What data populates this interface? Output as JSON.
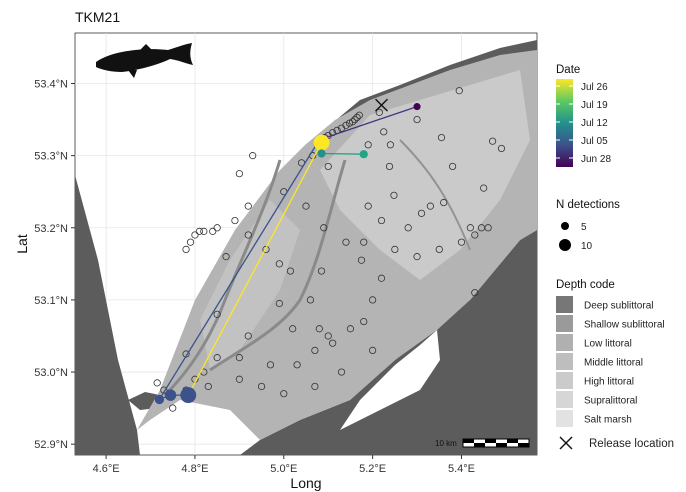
{
  "chart_data": {
    "type": "scatter",
    "title": "TKM21",
    "xlabel": "Long",
    "ylabel": "Lat",
    "xlim": [
      4.53,
      5.57
    ],
    "ylim": [
      52.885,
      53.47
    ],
    "x_ticks": [
      {
        "value": 4.6,
        "label": "4.6°E"
      },
      {
        "value": 4.8,
        "label": "4.8°E"
      },
      {
        "value": 5.0,
        "label": "5.0°E"
      },
      {
        "value": 5.2,
        "label": "5.2°E"
      },
      {
        "value": 5.4,
        "label": "5.4°E"
      }
    ],
    "y_ticks": [
      {
        "value": 52.9,
        "label": "52.9°N"
      },
      {
        "value": 53.0,
        "label": "53.0°N"
      },
      {
        "value": 53.1,
        "label": "53.1°N"
      },
      {
        "value": 53.2,
        "label": "53.2°N"
      },
      {
        "value": 53.3,
        "label": "53.3°N"
      },
      {
        "value": 53.4,
        "label": "53.4°N"
      }
    ],
    "grid": true,
    "legend_position": "right",
    "date_legend": {
      "title": "Date",
      "labels": [
        "Jul 26",
        "Jul 19",
        "Jul 12",
        "Jul 05",
        "Jun 28"
      ],
      "colors": [
        "#fde725",
        "#5ec962",
        "#21918c",
        "#3b528b",
        "#440154"
      ]
    },
    "size_legend": {
      "title": "N detections",
      "entries": [
        {
          "label": "5",
          "value": 5
        },
        {
          "label": "10",
          "value": 10
        }
      ]
    },
    "depth_legend": {
      "title": "Depth code",
      "items": [
        {
          "label": "Deep sublittoral",
          "color": "#777777"
        },
        {
          "label": "Shallow sublittoral",
          "color": "#9a9a9a"
        },
        {
          "label": "Low littoral",
          "color": "#b0b0b0"
        },
        {
          "label": "Middle littoral",
          "color": "#bebebe"
        },
        {
          "label": "High littoral",
          "color": "#cbcbcb"
        },
        {
          "label": "Supralittoral",
          "color": "#d6d6d6"
        },
        {
          "label": "Salt marsh",
          "color": "#e2e2e2"
        }
      ]
    },
    "release_legend": {
      "label": "Release location"
    },
    "release_location": {
      "x": 5.22,
      "y": 53.37
    },
    "scalebar": {
      "label": "10 km"
    },
    "track": [
      {
        "x": 5.3,
        "y": 53.368,
        "n": 2,
        "color": "#440154"
      },
      {
        "x": 5.08,
        "y": 53.322,
        "n": 2,
        "color": "#46327e"
      },
      {
        "x": 4.72,
        "y": 52.962,
        "n": 4,
        "color": "#3b528b"
      },
      {
        "x": 4.745,
        "y": 52.968,
        "n": 6,
        "color": "#3b528b"
      },
      {
        "x": 4.785,
        "y": 52.968,
        "n": 10,
        "color": "#3b528b"
      },
      {
        "x": 5.085,
        "y": 53.318,
        "n": 10,
        "color": "#fde725"
      },
      {
        "x": 5.085,
        "y": 53.303,
        "n": 3,
        "color": "#21918c"
      },
      {
        "x": 5.18,
        "y": 53.302,
        "n": 3,
        "color": "#21a585"
      }
    ],
    "receivers": [
      [
        5.13,
        53.338
      ],
      [
        5.14,
        53.342
      ],
      [
        5.148,
        53.345
      ],
      [
        5.155,
        53.347
      ],
      [
        5.16,
        53.35
      ],
      [
        5.165,
        53.353
      ],
      [
        5.17,
        53.356
      ],
      [
        5.12,
        53.335
      ],
      [
        5.11,
        53.332
      ],
      [
        5.1,
        53.328
      ],
      [
        5.092,
        53.325
      ],
      [
        5.225,
        53.333
      ],
      [
        5.19,
        53.315
      ],
      [
        5.24,
        53.315
      ],
      [
        5.238,
        53.285
      ],
      [
        5.248,
        53.245
      ],
      [
        5.3,
        53.35
      ],
      [
        5.355,
        53.325
      ],
      [
        5.395,
        53.39
      ],
      [
        5.47,
        53.32
      ],
      [
        5.49,
        53.31
      ],
      [
        5.45,
        53.255
      ],
      [
        5.38,
        53.285
      ],
      [
        5.1,
        53.285
      ],
      [
        5.04,
        53.29
      ],
      [
        5.065,
        53.3
      ],
      [
        4.93,
        53.3
      ],
      [
        4.9,
        53.275
      ],
      [
        4.92,
        53.23
      ],
      [
        4.92,
        53.19
      ],
      [
        4.96,
        53.17
      ],
      [
        4.89,
        53.21
      ],
      [
        4.85,
        53.2
      ],
      [
        4.84,
        53.195
      ],
      [
        4.82,
        53.195
      ],
      [
        4.81,
        53.195
      ],
      [
        4.8,
        53.19
      ],
      [
        4.79,
        53.18
      ],
      [
        4.78,
        53.17
      ],
      [
        4.87,
        53.16
      ],
      [
        4.99,
        53.15
      ],
      [
        5.09,
        53.2
      ],
      [
        5.14,
        53.18
      ],
      [
        5.18,
        53.18
      ],
      [
        5.175,
        53.155
      ],
      [
        5.085,
        53.14
      ],
      [
        5.015,
        53.14
      ],
      [
        4.99,
        53.095
      ],
      [
        5.06,
        53.1
      ],
      [
        5.08,
        53.06
      ],
      [
        5.1,
        53.05
      ],
      [
        5.15,
        53.06
      ],
      [
        5.18,
        53.07
      ],
      [
        5.2,
        53.1
      ],
      [
        5.22,
        53.13
      ],
      [
        5.25,
        53.17
      ],
      [
        5.28,
        53.2
      ],
      [
        5.31,
        53.22
      ],
      [
        5.35,
        53.17
      ],
      [
        5.4,
        53.18
      ],
      [
        5.43,
        53.19
      ],
      [
        5.46,
        53.2
      ],
      [
        5.43,
        53.11
      ],
      [
        5.3,
        53.16
      ],
      [
        5.22,
        53.21
      ],
      [
        5.19,
        53.23
      ],
      [
        5.05,
        53.23
      ],
      [
        5.0,
        53.25
      ],
      [
        5.33,
        53.23
      ],
      [
        5.42,
        53.2
      ],
      [
        5.445,
        53.2
      ],
      [
        5.36,
        53.235
      ],
      [
        4.85,
        53.08
      ],
      [
        4.92,
        53.05
      ],
      [
        5.02,
        53.06
      ],
      [
        4.78,
        53.025
      ],
      [
        4.85,
        53.02
      ],
      [
        4.9,
        53.02
      ],
      [
        4.97,
        53.01
      ],
      [
        5.03,
        53.01
      ],
      [
        5.07,
        53.03
      ],
      [
        5.13,
        53.0
      ],
      [
        5.2,
        53.03
      ],
      [
        4.83,
        52.98
      ],
      [
        4.9,
        52.99
      ],
      [
        4.95,
        52.98
      ],
      [
        5.0,
        52.97
      ],
      [
        5.07,
        52.98
      ],
      [
        4.82,
        53.0
      ],
      [
        4.8,
        52.99
      ],
      [
        4.78,
        52.975
      ],
      [
        4.75,
        52.95
      ],
      [
        4.715,
        52.985
      ],
      [
        4.73,
        52.975
      ],
      [
        5.215,
        53.36
      ],
      [
        5.11,
        53.04
      ]
    ]
  }
}
